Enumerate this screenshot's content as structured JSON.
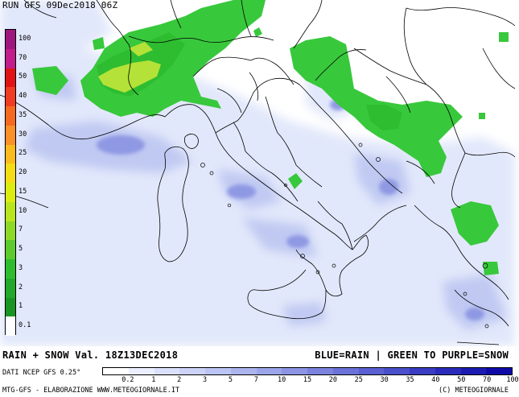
{
  "header": {
    "run_title": "RUN GFS 09Dec2018 06Z"
  },
  "map": {
    "water_color": "#ffffff",
    "land_color": "#ffffff",
    "border_color": "#000000",
    "rain_light": "#e2e8fb",
    "rain_mid": "#c0c9f2",
    "rain_heavy": "#8f99e3",
    "snow_light": "#38c83c",
    "snow_mid": "#2ebd30",
    "snow_heavy": "#b4e238"
  },
  "snow_scale": {
    "labels": [
      "100",
      "70",
      "50",
      "40",
      "35",
      "30",
      "25",
      "20",
      "15",
      "10",
      "7",
      "5",
      "3",
      "2",
      "1",
      "0.1"
    ],
    "colors": [
      "#9e177f",
      "#c11d8c",
      "#e01414",
      "#f03c22",
      "#f46a1f",
      "#f9902a",
      "#fbbb1e",
      "#f4dc16",
      "#dcec10",
      "#b9e51d",
      "#8ed926",
      "#5dcb2d",
      "#2ebd30",
      "#22a82b",
      "#1a9524",
      "#ffffff"
    ]
  },
  "footer": {
    "title_left": "RAIN + SNOW Val. 18Z13DEC2018",
    "title_right": "BLUE=RAIN | GREEN TO PURPLE=SNOW",
    "dati": "DATI NCEP GFS 0.25°",
    "credit_left": "MTG-GFS - ELABORAZIONE WWW.METEOGIORNALE.IT",
    "credit_right": "(C) METEOGIORNALE",
    "rain_scale": {
      "labels": [
        "0.2",
        "1",
        "2",
        "3",
        "5",
        "7",
        "10",
        "15",
        "20",
        "25",
        "30",
        "35",
        "40",
        "50",
        "70",
        "100"
      ],
      "colors": [
        "#ffffff",
        "#ecefff",
        "#dce1fb",
        "#ccd3f7",
        "#bcc4f3",
        "#acb4ee",
        "#9ca5ea",
        "#8c94e4",
        "#7b83de",
        "#6b72d8",
        "#5a60d1",
        "#4a4fca",
        "#3a3dc2",
        "#2a2bba",
        "#1c1bb1",
        "#0f0aa7"
      ]
    }
  }
}
